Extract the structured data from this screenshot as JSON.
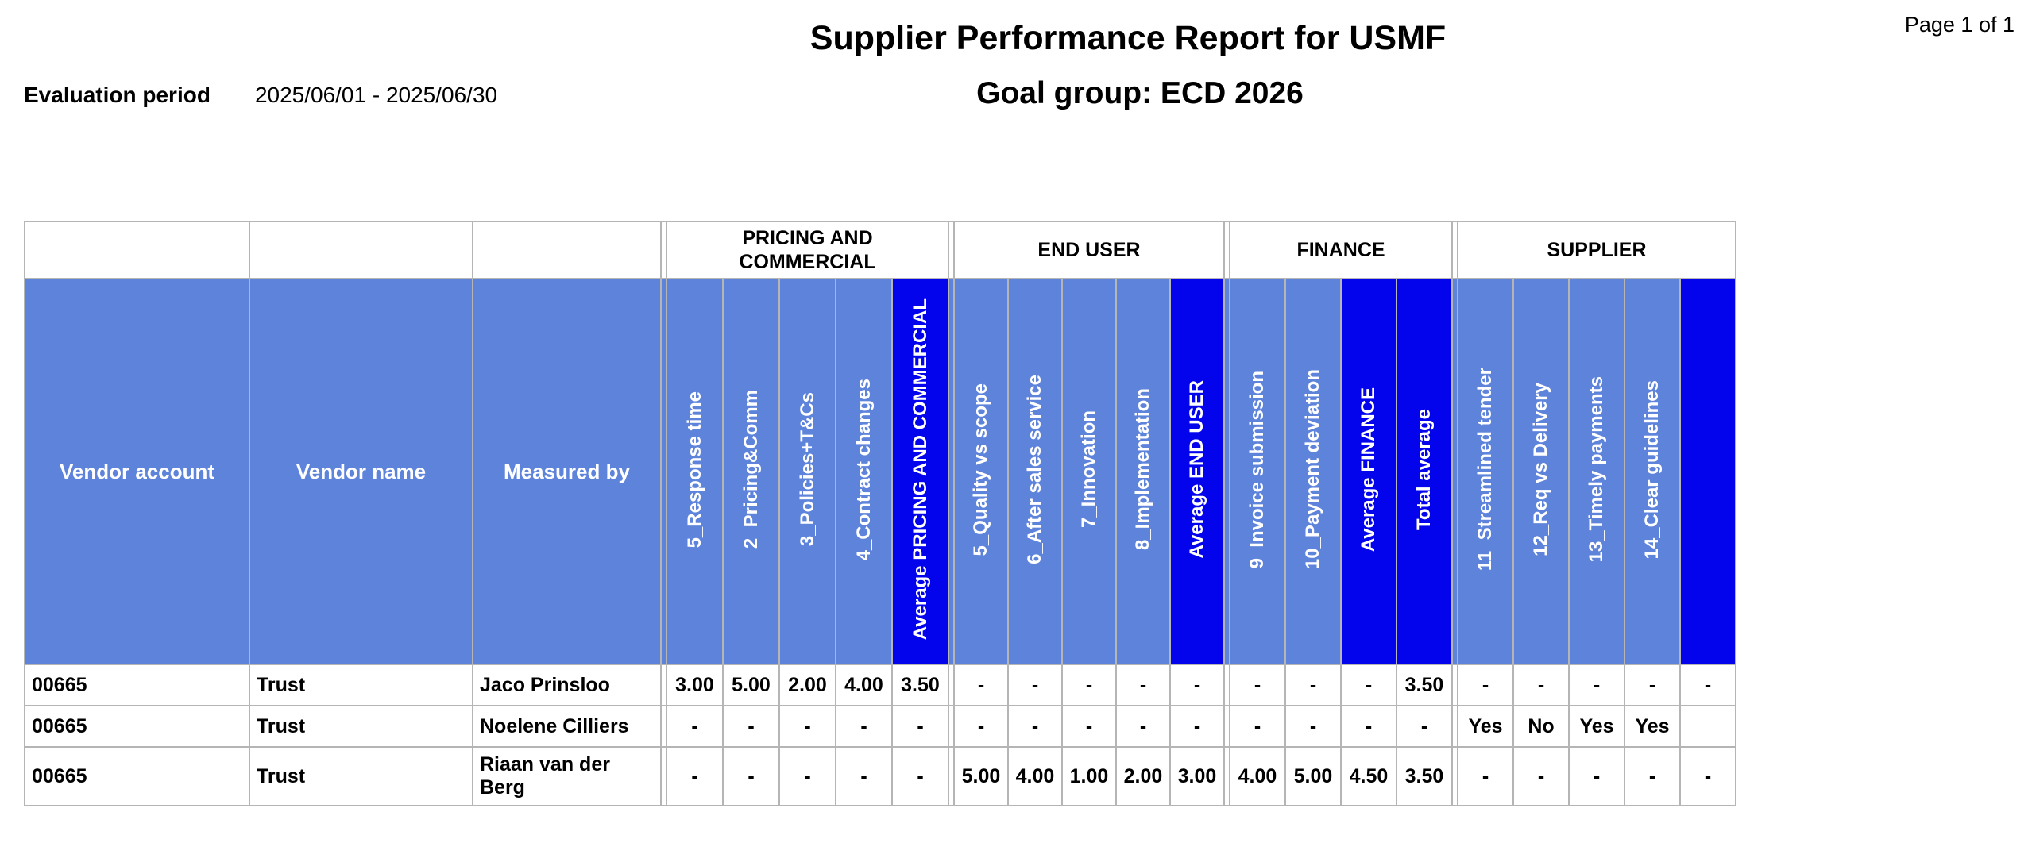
{
  "page": {
    "page_number_label": "Page 1 of 1",
    "title": "Supplier Performance Report for USMF",
    "evaluation_period_label": "Evaluation period",
    "evaluation_period_value": "2025/06/01 - 2025/06/30",
    "goal_group_label": "Goal group: ECD 2026"
  },
  "colors": {
    "header_light_blue": "#5e83db",
    "header_dark_blue": "#0404ec",
    "grid_line": "#b5b5b5"
  },
  "table": {
    "fixed_columns": [
      "Vendor account",
      "Vendor name",
      "Measured by"
    ],
    "groups": [
      {
        "label": "PRICING AND COMMERCIAL",
        "count": 5
      },
      {
        "label": "END USER",
        "count": 5
      },
      {
        "label": "FINANCE",
        "count": 4
      },
      {
        "label": "SUPPLIER",
        "count": 5
      }
    ],
    "metric_columns": [
      {
        "label": "5_Response time",
        "dark": false
      },
      {
        "label": "2_Pricing&Comm",
        "dark": false
      },
      {
        "label": "3_Policies+T&Cs",
        "dark": false
      },
      {
        "label": "4_Contract changes",
        "dark": false
      },
      {
        "label": "Average PRICING AND COMMERCIAL",
        "dark": true
      },
      {
        "label": "5_Quality vs scope",
        "dark": false
      },
      {
        "label": "6_After sales service",
        "dark": false
      },
      {
        "label": "7_Innovation",
        "dark": false
      },
      {
        "label": "8_Implementation",
        "dark": false
      },
      {
        "label": "Average END USER",
        "dark": true
      },
      {
        "label": "9_Invoice submission",
        "dark": false
      },
      {
        "label": "10_Payment deviation",
        "dark": false
      },
      {
        "label": "Average FINANCE",
        "dark": true
      },
      {
        "label": "Total average",
        "dark": true
      },
      {
        "label": "11_Streamlined tender",
        "dark": false
      },
      {
        "label": "12_Req vs Delivery",
        "dark": false
      },
      {
        "label": "13_Timely payments",
        "dark": false
      },
      {
        "label": "14_Clear guidelines",
        "dark": false
      },
      {
        "label": "",
        "dark": true
      }
    ],
    "rows": [
      {
        "vendor_account": "00665",
        "vendor_name": "Trust",
        "measured_by": "Jaco Prinsloo",
        "values": [
          "3.00",
          "5.00",
          "2.00",
          "4.00",
          "3.50",
          "-",
          "-",
          "-",
          "-",
          "-",
          "-",
          "-",
          "-",
          "3.50",
          "-",
          "-",
          "-",
          "-",
          "-"
        ]
      },
      {
        "vendor_account": "00665",
        "vendor_name": "Trust",
        "measured_by": "Noelene Cilliers",
        "values": [
          "-",
          "-",
          "-",
          "-",
          "-",
          "-",
          "-",
          "-",
          "-",
          "-",
          "-",
          "-",
          "-",
          "-",
          "Yes",
          "No",
          "Yes",
          "Yes",
          ""
        ]
      },
      {
        "vendor_account": "00665",
        "vendor_name": "Trust",
        "measured_by": "Riaan van der Berg",
        "values": [
          "-",
          "-",
          "-",
          "-",
          "-",
          "5.00",
          "4.00",
          "1.00",
          "2.00",
          "3.00",
          "4.00",
          "5.00",
          "4.50",
          "3.50",
          "-",
          "-",
          "-",
          "-",
          "-"
        ]
      }
    ]
  }
}
